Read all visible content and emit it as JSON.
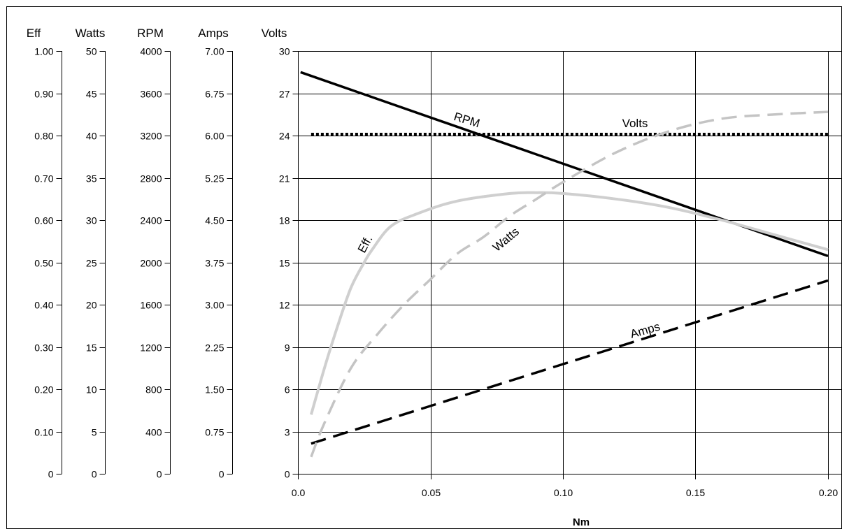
{
  "chart_data": {
    "type": "line",
    "xlabel": "Nm",
    "x_axis": {
      "min": 0,
      "max": 0.2,
      "ticks": [
        "0.0",
        "0.05",
        "0.10",
        "0.15",
        "0.20"
      ],
      "tick_values": [
        0,
        0.05,
        0.1,
        0.15,
        0.2
      ]
    },
    "grid": true,
    "y_axes": [
      {
        "title": "Eff",
        "min": 0,
        "max": 1,
        "ticks": [
          "0",
          "0.10",
          "0.20",
          "0.30",
          "0.40",
          "0.50",
          "0.60",
          "0.70",
          "0.80",
          "0.90",
          "1.00"
        ]
      },
      {
        "title": "Watts",
        "min": 0,
        "max": 50,
        "ticks": [
          "0",
          "5",
          "10",
          "15",
          "20",
          "25",
          "30",
          "35",
          "40",
          "45",
          "50"
        ]
      },
      {
        "title": "RPM",
        "min": 0,
        "max": 4000,
        "ticks": [
          "0",
          "400",
          "800",
          "1200",
          "1600",
          "2000",
          "2400",
          "2800",
          "3200",
          "3600",
          "4000"
        ]
      },
      {
        "title": "Amps",
        "min": 0,
        "max": 7,
        "ticks": [
          "0",
          "0.75",
          "1.50",
          "2.25",
          "3.00",
          "3.75",
          "4.50",
          "5.25",
          "6.00",
          "6.75",
          "7.00"
        ]
      },
      {
        "title": "Volts",
        "min": 0,
        "max": 30,
        "ticks": [
          "0",
          "3",
          "6",
          "9",
          "12",
          "15",
          "18",
          "21",
          "24",
          "27",
          "30"
        ]
      }
    ],
    "series": [
      {
        "name": "Volts",
        "axis": "Volts",
        "color": "#000000",
        "dash": "dotted",
        "x": [
          0.005,
          0.2
        ],
        "y": [
          24.1,
          24.1
        ]
      },
      {
        "name": "RPM",
        "axis": "RPM",
        "color": "#000000",
        "dash": "solid",
        "x": [
          0.001,
          0.2
        ],
        "y": [
          3800,
          2060
        ]
      },
      {
        "name": "Amps",
        "axis": "Amps",
        "color": "#000000",
        "dash": "dashed",
        "x": [
          0.005,
          0.2
        ],
        "y": [
          0.5,
          3.2
        ]
      },
      {
        "name": "Eff.",
        "axis": "Eff",
        "color": "#cfcfcf",
        "dash": "solid",
        "x": [
          0.005,
          0.01,
          0.015,
          0.02,
          0.025,
          0.028,
          0.035,
          0.045,
          0.06,
          0.08,
          0.09,
          0.1,
          0.12,
          0.14,
          0.16,
          0.18,
          0.2
        ],
        "y": [
          0.14,
          0.25,
          0.35,
          0.44,
          0.5,
          0.53,
          0.585,
          0.615,
          0.645,
          0.663,
          0.665,
          0.663,
          0.65,
          0.63,
          0.6,
          0.565,
          0.53
        ]
      },
      {
        "name": "Watts",
        "axis": "Watts",
        "color": "#c4c4c4",
        "dash": "dashed",
        "x": [
          0.005,
          0.01,
          0.02,
          0.03,
          0.04,
          0.05,
          0.06,
          0.07,
          0.08,
          0.09,
          0.1,
          0.12,
          0.14,
          0.16,
          0.18,
          0.2
        ],
        "y": [
          2,
          6,
          12.5,
          16.5,
          20,
          23,
          26,
          28,
          30.5,
          32.5,
          34.5,
          38,
          40.5,
          42,
          42.5,
          42.8
        ]
      }
    ],
    "annotations": [
      "RPM",
      "Volts",
      "Eff.",
      "Watts",
      "Amps"
    ]
  }
}
